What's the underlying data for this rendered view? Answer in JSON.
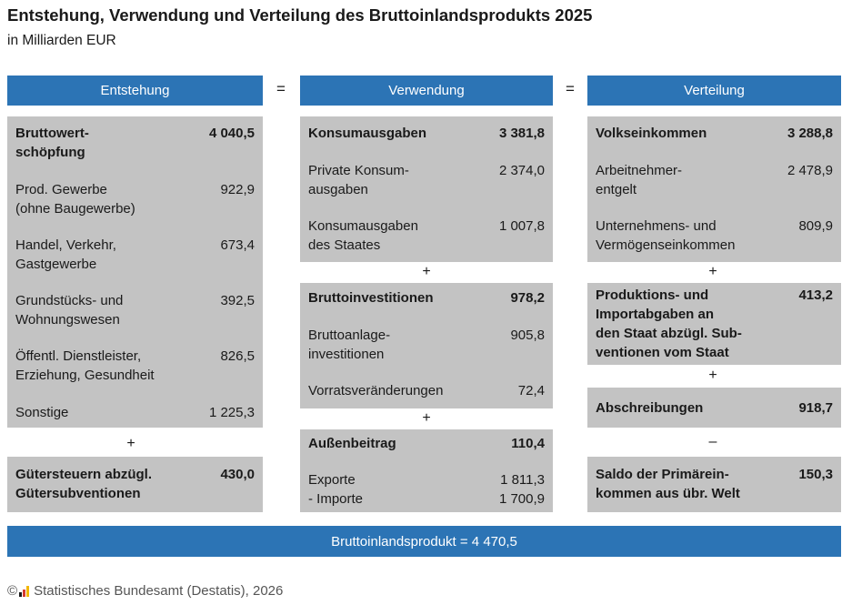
{
  "title": "Entstehung, Verwendung und Verteilung des Bruttoinlandsprodukts 2025",
  "subtitle": "in Milliarden EUR",
  "headers": {
    "entstehung": "Entstehung",
    "verwendung": "Verwendung",
    "verteilung": "Verteilung"
  },
  "equals": "=",
  "operators": {
    "plus": "+",
    "minus": "–"
  },
  "entstehung": {
    "bruttowertschoepfung": {
      "label": "Bruttowert-\nschöpfung",
      "value": "4 040,5",
      "items": [
        {
          "label": "Prod. Gewerbe\n(ohne Baugewerbe)",
          "value": "922,9"
        },
        {
          "label": "Handel, Verkehr,\nGastgewerbe",
          "value": "673,4"
        },
        {
          "label": "Grundstücks- und\nWohnungswesen",
          "value": "392,5"
        },
        {
          "label": "Öffentl. Dienstleister,\nErziehung, Gesundheit",
          "value": "826,5"
        },
        {
          "label": "Sonstige",
          "value": "1 225,3"
        }
      ]
    },
    "guetersteuern": {
      "label": "Gütersteuern abzügl.\nGütersubventionen",
      "value": "430,0"
    }
  },
  "verwendung": {
    "konsumausgaben": {
      "label": "Konsumausgaben",
      "value": "3 381,8",
      "items": [
        {
          "label": "Private Konsum-\nausgaben",
          "value": "2 374,0"
        },
        {
          "label": "Konsumausgaben\ndes Staates",
          "value": "1 007,8"
        }
      ]
    },
    "bruttoinvestitionen": {
      "label": "Bruttoinvestitionen",
      "value": "978,2",
      "items": [
        {
          "label": "Bruttoanlage-\ninvestitionen",
          "value": "905,8"
        },
        {
          "label": "Vorratsveränderungen",
          "value": "72,4"
        }
      ]
    },
    "aussenbeitrag": {
      "label": "Außenbeitrag",
      "value": "110,4",
      "items": [
        {
          "label": "Exporte\n- Importe",
          "value": "1 811,3\n1 700,9"
        }
      ]
    }
  },
  "verteilung": {
    "volkseinkommen": {
      "label": "Volkseinkommen",
      "value": "3 288,8",
      "items": [
        {
          "label": "Arbeitnehmer-\nentgelt",
          "value": "2 478,9"
        },
        {
          "label": "Unternehmens- und\nVermögenseinkommen",
          "value": "809,9"
        }
      ]
    },
    "produktionsabgaben": {
      "label": "Produktions- und\nImportabgaben an\nden Staat abzügl. Sub-\nventionen vom Staat",
      "value": "413,2"
    },
    "abschreibungen": {
      "label": "Abschreibungen",
      "value": "918,7"
    },
    "saldo": {
      "label": "Saldo der Primärein-\nkommen aus übr. Welt",
      "value": "150,3"
    }
  },
  "total": "Bruttoinlandsprodukt = 4 470,5",
  "footer": {
    "copyright": "©",
    "source": "Statistisches Bundesamt (Destatis), 2026"
  },
  "colors": {
    "header_blue": "#2c74b5",
    "box_grey": "#c3c3c3"
  }
}
